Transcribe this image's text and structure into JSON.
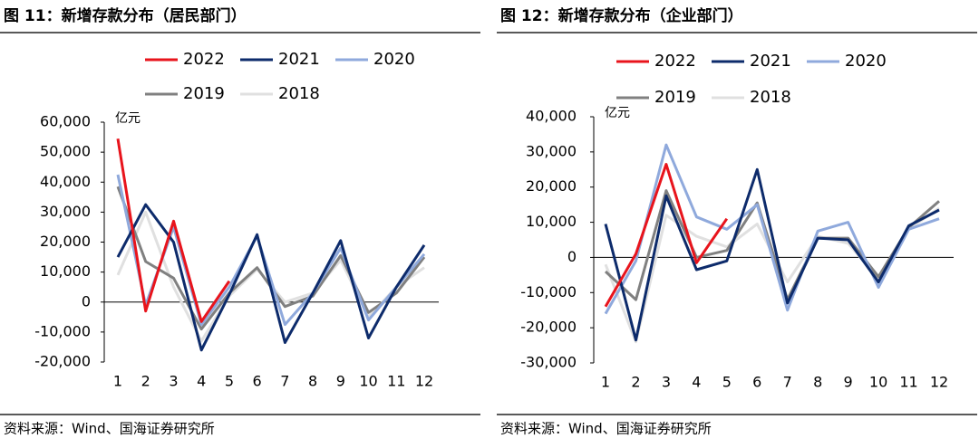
{
  "chart_data": [
    {
      "type": "line",
      "title": "图 11：新增存款分布（居民部门）",
      "unit_label": "亿元",
      "source": "资料来源：Wind、国海证券研究所",
      "categories": [
        "1",
        "2",
        "3",
        "4",
        "5",
        "6",
        "7",
        "8",
        "9",
        "10",
        "11",
        "12"
      ],
      "ylim": [
        -20000,
        60000
      ],
      "yticks": [
        {
          "value": -20000,
          "label": "-20,000"
        },
        {
          "value": -10000,
          "label": "-10,000"
        },
        0,
        {
          "value": 10000,
          "label": "10,000"
        },
        {
          "value": 20000,
          "label": "20,000"
        },
        {
          "value": 30000,
          "label": "30,000"
        },
        {
          "value": 40000,
          "label": "40,000"
        },
        {
          "value": 50000,
          "label": "50,000"
        },
        {
          "value": 60000,
          "label": "60,000"
        }
      ],
      "series": [
        {
          "name": "2022",
          "color": "#e8141c",
          "values": [
            54500,
            -3000,
            27000,
            -6500,
            7000,
            null,
            null,
            null,
            null,
            null,
            null,
            null
          ]
        },
        {
          "name": "2021",
          "color": "#0d2b6b",
          "values": [
            15000,
            32500,
            20000,
            -16000,
            2500,
            22500,
            -13500,
            3000,
            20500,
            -12000,
            5000,
            19000
          ]
        },
        {
          "name": "2020",
          "color": "#8fa9dc",
          "values": [
            42500,
            -1000,
            25000,
            -7500,
            5000,
            22000,
            -7500,
            3000,
            18000,
            -6000,
            5000,
            16000
          ]
        },
        {
          "name": "2019",
          "color": "#808080",
          "values": [
            38500,
            13500,
            8000,
            -9000,
            3000,
            11500,
            -1500,
            2000,
            15500,
            -3500,
            3000,
            15000
          ]
        },
        {
          "name": "2018",
          "color": "#e0e0e0",
          "values": [
            9000,
            30000,
            5000,
            -13000,
            2000,
            11000,
            0,
            3000,
            14000,
            -5000,
            5000,
            11500
          ]
        }
      ]
    },
    {
      "type": "line",
      "title": "图 12：新增存款分布（企业部门）",
      "unit_label": "亿元",
      "source": "资料来源：Wind、国海证券研究所",
      "categories": [
        "1",
        "2",
        "3",
        "4",
        "5",
        "6",
        "7",
        "8",
        "9",
        "10",
        "11",
        "12"
      ],
      "ylim": [
        -30000,
        40000
      ],
      "yticks": [
        {
          "value": -30000,
          "label": "-30,000"
        },
        {
          "value": -20000,
          "label": "-20,000"
        },
        {
          "value": -10000,
          "label": "-10,000"
        },
        0,
        {
          "value": 10000,
          "label": "10,000"
        },
        {
          "value": 20000,
          "label": "20,000"
        },
        {
          "value": 30000,
          "label": "30,000"
        },
        {
          "value": 40000,
          "label": "40,000"
        }
      ],
      "series": [
        {
          "name": "2022",
          "color": "#e8141c",
          "values": [
            -14000,
            1000,
            26500,
            -1500,
            11000,
            null,
            null,
            null,
            null,
            null,
            null,
            null
          ]
        },
        {
          "name": "2021",
          "color": "#0d2b6b",
          "values": [
            9500,
            -23500,
            17500,
            -3500,
            -1000,
            25000,
            -13000,
            5500,
            5000,
            -7000,
            9000,
            13500
          ]
        },
        {
          "name": "2020",
          "color": "#8fa9dc",
          "values": [
            -16000,
            -1000,
            32000,
            11500,
            8000,
            15000,
            -15000,
            7500,
            10000,
            -8500,
            8000,
            11000
          ]
        },
        {
          "name": "2019",
          "color": "#808080",
          "values": [
            -4000,
            -12000,
            19000,
            0,
            2000,
            15500,
            -12000,
            5500,
            5500,
            -5500,
            8500,
            16000
          ]
        },
        {
          "name": "2018",
          "color": "#e0e0e0",
          "values": [
            -2000,
            -24000,
            12000,
            6000,
            3000,
            9500,
            -7000,
            6000,
            4000,
            -6000,
            8000,
            14000
          ]
        }
      ]
    }
  ]
}
